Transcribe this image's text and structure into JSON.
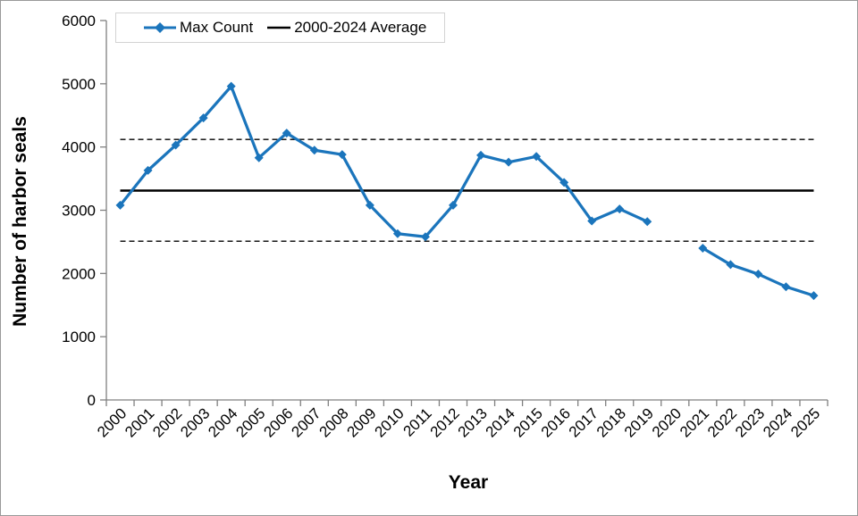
{
  "figure": {
    "y_axis_title": "Number of harbor seals",
    "x_axis_title": "Year",
    "legend": [
      {
        "label": "Max Count",
        "color": "#1B75BC",
        "swatch": "line-with-diamond"
      },
      {
        "label": "2000-2024 Average",
        "color": "#000000",
        "swatch": "line"
      }
    ],
    "colors": {
      "series_blue": "#1B75BC",
      "axis_gray": "#808080",
      "text_black": "#000000",
      "legend_border": "#D3D3D3",
      "figure_border": "#999999"
    }
  },
  "chart_data": {
    "type": "line",
    "title": "",
    "xlabel": "Year",
    "ylabel": "Number of harbor seals",
    "categories": [
      "2000",
      "2001",
      "2002",
      "2003",
      "2004",
      "2005",
      "2006",
      "2007",
      "2008",
      "2009",
      "2010",
      "2011",
      "2012",
      "2013",
      "2014",
      "2015",
      "2016",
      "2017",
      "2018",
      "2019",
      "2020",
      "2021",
      "2022",
      "2023",
      "2024",
      "2025"
    ],
    "series": [
      {
        "name": "Max Count",
        "color": "#1B75BC",
        "marker": "diamond",
        "values": [
          3080,
          3630,
          4030,
          4460,
          4960,
          3830,
          4220,
          3950,
          3880,
          3080,
          2630,
          2580,
          3080,
          3870,
          3760,
          3850,
          3440,
          2830,
          3020,
          2820,
          null,
          2400,
          2140,
          1990,
          1790,
          1650
        ]
      }
    ],
    "reference_lines": [
      {
        "name": "2000-2024 Average",
        "value": 3310,
        "style": "solid",
        "color": "#000000"
      },
      {
        "name": "upper dashed bound",
        "value": 4120,
        "style": "dashed",
        "color": "#000000"
      },
      {
        "name": "lower dashed bound",
        "value": 2510,
        "style": "dashed",
        "color": "#000000"
      }
    ],
    "ylim": [
      0,
      6000
    ],
    "ytick_interval": 1000,
    "xtick_rotation": 45,
    "legend_position": "top-left",
    "grid": false
  }
}
